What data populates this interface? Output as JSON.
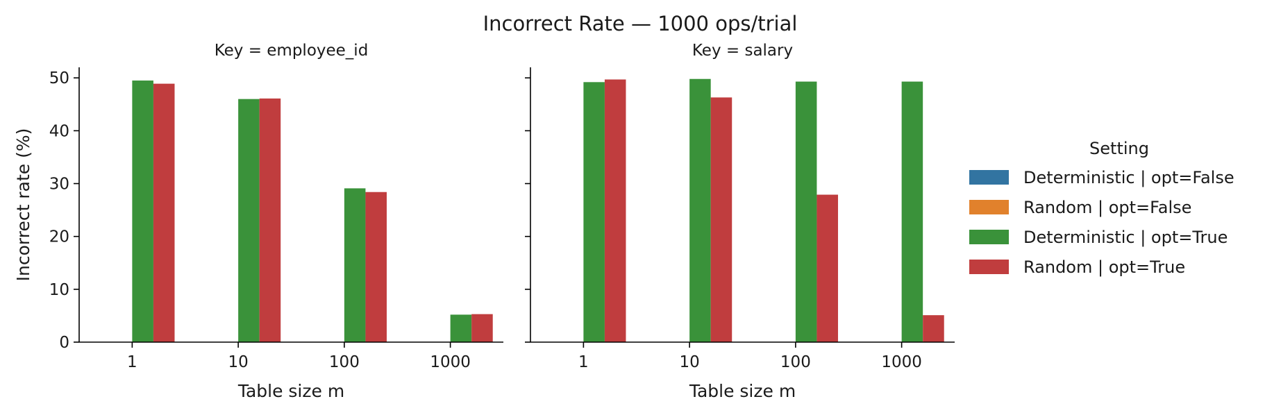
{
  "chart_data": {
    "type": "bar",
    "title": "Incorrect Rate — 1000 ops/trial",
    "ylabel": "Incorrect rate (%)",
    "xlabel": "Table size m",
    "ylim": [
      0,
      52
    ],
    "yticks": [
      0,
      10,
      20,
      30,
      40,
      50
    ],
    "categories": [
      "1",
      "10",
      "100",
      "1000"
    ],
    "legend": {
      "title": "Setting",
      "placement": "right"
    },
    "series": [
      {
        "name": "Deterministic | opt=False",
        "color": "#3274a1"
      },
      {
        "name": "Random | opt=False",
        "color": "#e1812c"
      },
      {
        "name": "Deterministic | opt=True",
        "color": "#3a923a"
      },
      {
        "name": "Random | opt=True",
        "color": "#c03d3e"
      }
    ],
    "facets": [
      {
        "title": "Key = employee_id",
        "values": [
          [
            0,
            0,
            0,
            0
          ],
          [
            0,
            0,
            0,
            0
          ],
          [
            49.5,
            46.0,
            29.1,
            5.2
          ],
          [
            48.9,
            46.1,
            28.4,
            5.3
          ]
        ]
      },
      {
        "title": "Key = salary",
        "values": [
          [
            0,
            0,
            0,
            0
          ],
          [
            0,
            0,
            0,
            0
          ],
          [
            49.2,
            49.8,
            49.3,
            49.3
          ],
          [
            49.7,
            46.3,
            27.9,
            5.1
          ]
        ]
      }
    ]
  }
}
